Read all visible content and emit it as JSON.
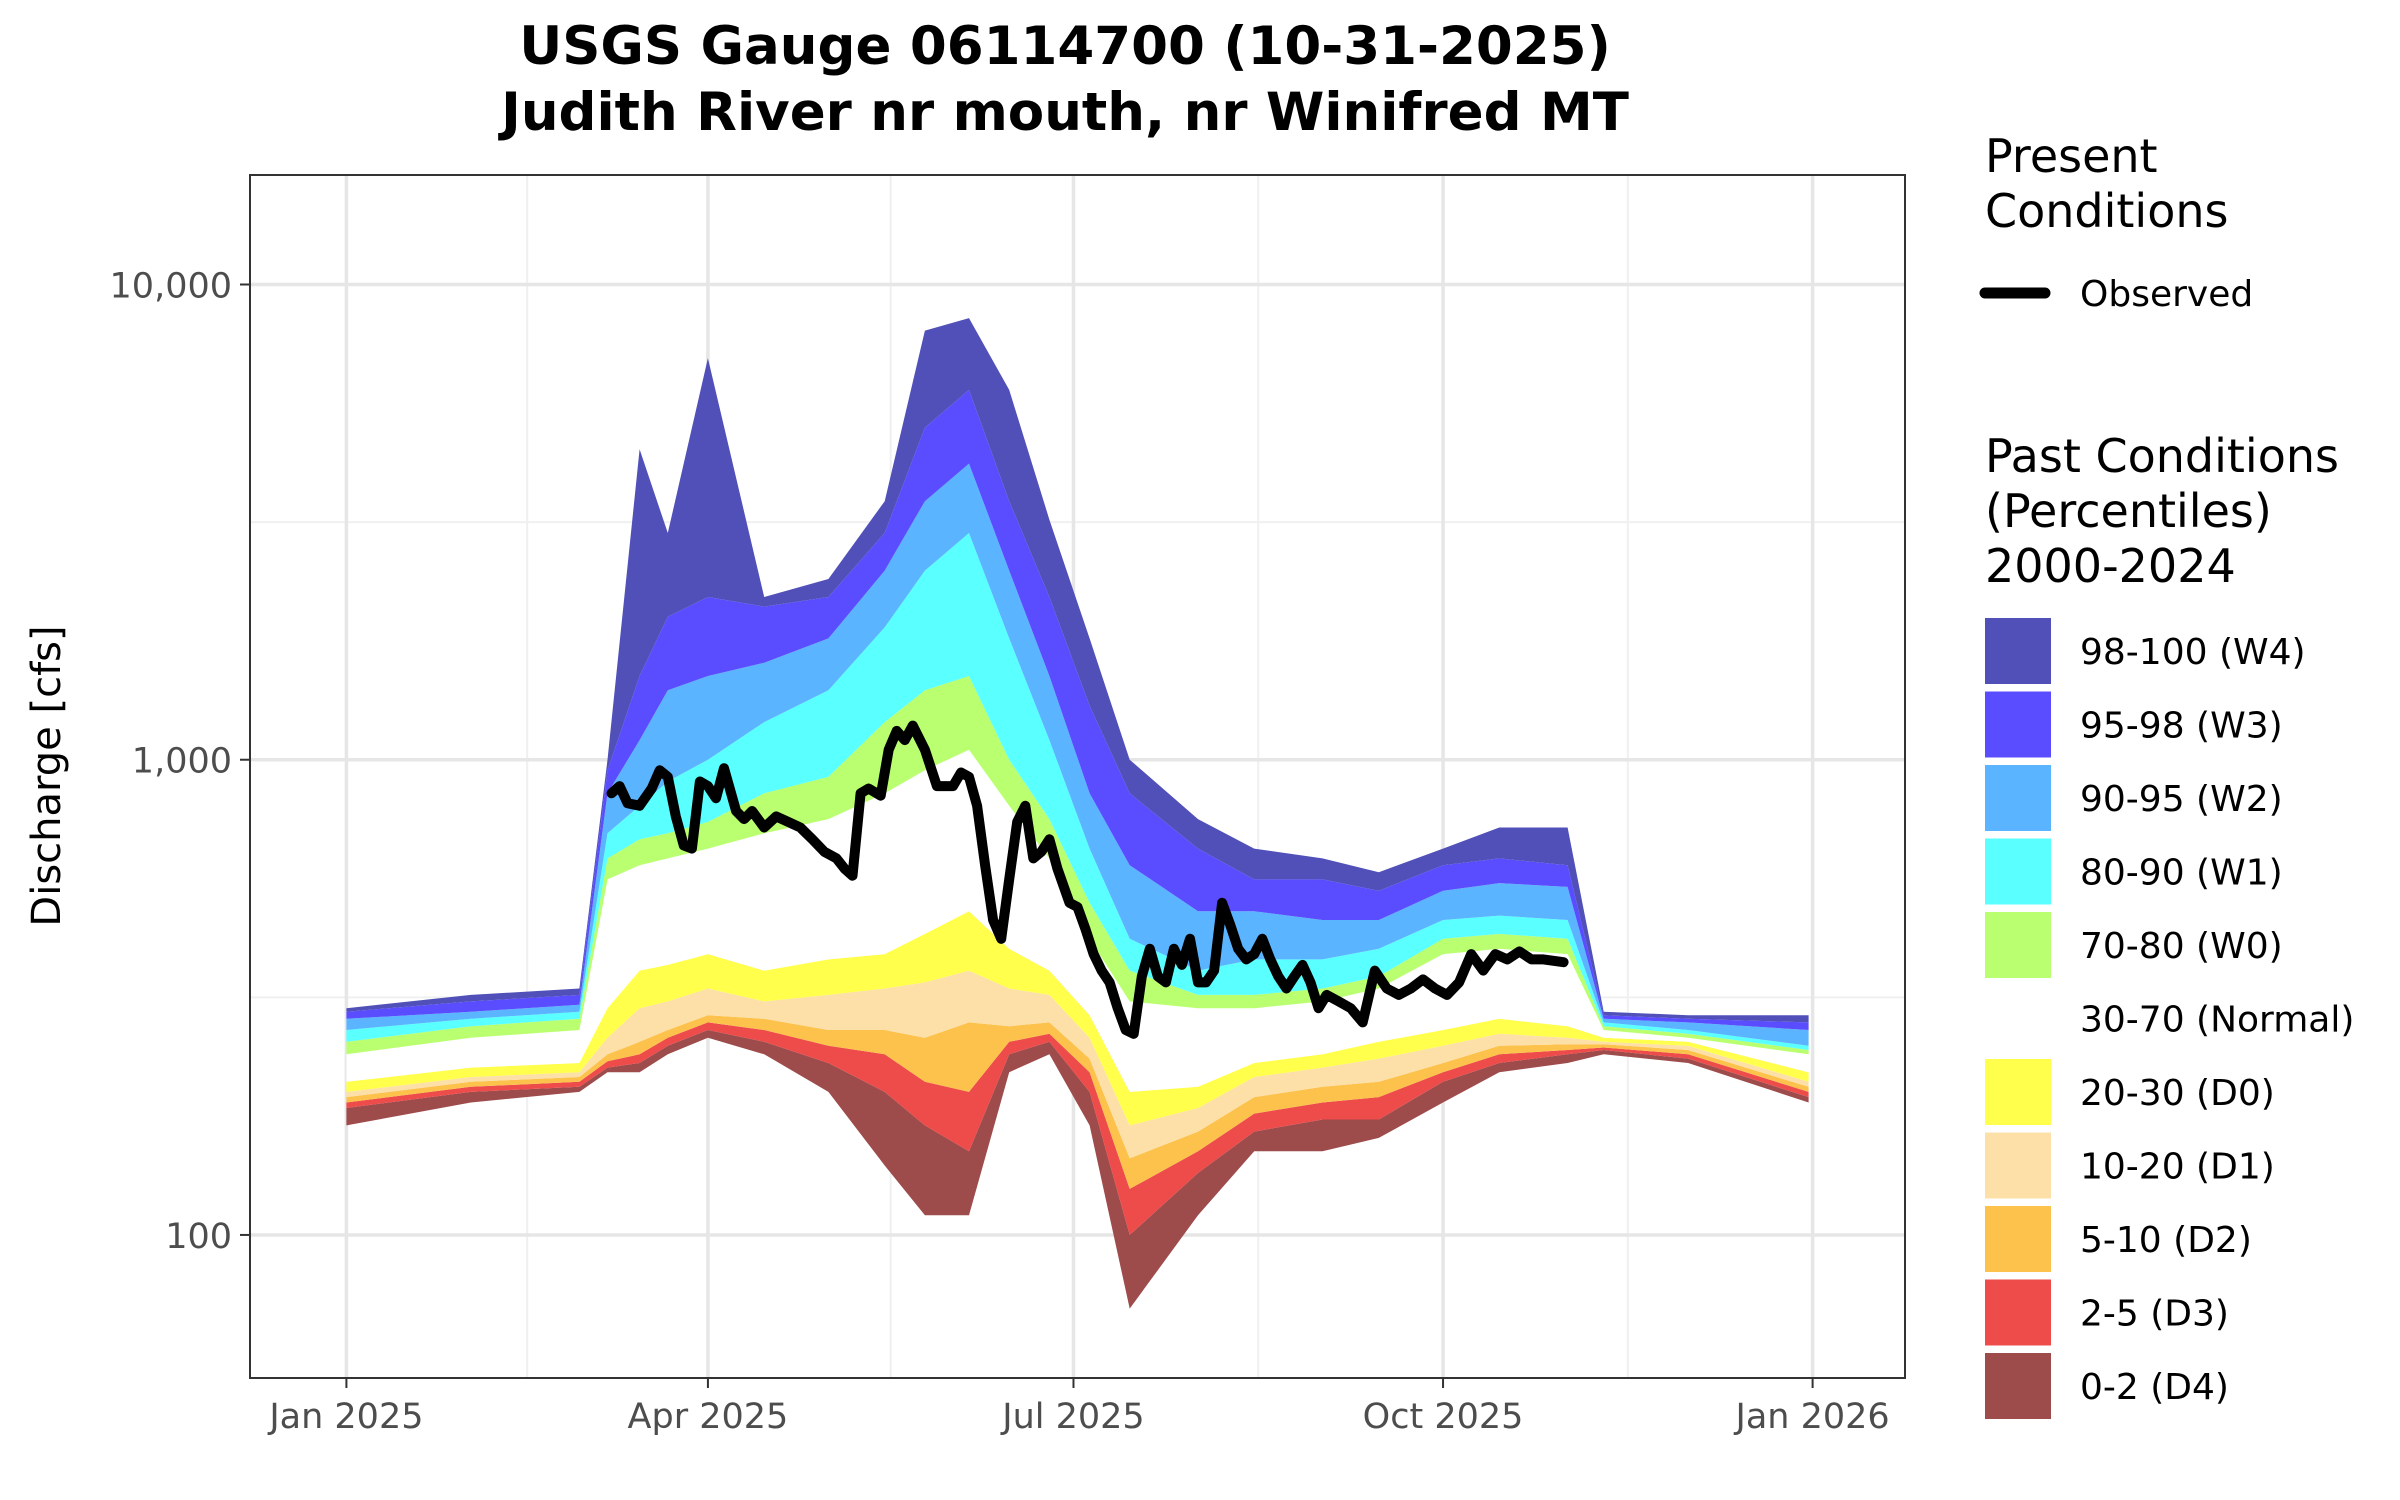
{
  "chart_data": {
    "type": "area",
    "title": "USGS Gauge 06114700 (10-31-2025)",
    "subtitle": "Judith River nr mouth, nr Winifred MT",
    "xlabel": "",
    "ylabel": "Discharge [cfs]",
    "y_scale": "log",
    "ylim": [
      50,
      17000
    ],
    "y_ticks": [
      100,
      1000,
      10000
    ],
    "y_tick_labels": [
      "100",
      "1,000",
      "10,000"
    ],
    "x_range": [
      "2024-12-08",
      "2026-01-24"
    ],
    "x_ticks": [
      "2025-01-01",
      "2025-04-01",
      "2025-07-01",
      "2025-10-01",
      "2026-01-01"
    ],
    "x_tick_labels": [
      "Jan 2025",
      "Apr 2025",
      "Jul 2025",
      "Oct 2025",
      "Jan 2026"
    ],
    "grid": true,
    "legend_position": "right",
    "legend_present_title": "Present Conditions",
    "legend_past_title": "Past Conditions (Percentiles) 2000-2024",
    "percentile_bands": [
      {
        "name": "98-100 (W4)",
        "color": "#5050b8"
      },
      {
        "name": "95-98 (W3)",
        "color": "#5a4cff"
      },
      {
        "name": "90-95 (W2)",
        "color": "#5ab4ff"
      },
      {
        "name": "80-90 (W1)",
        "color": "#5affff"
      },
      {
        "name": "70-80 (W0)",
        "color": "#b9ff70"
      },
      {
        "name": "30-70 (Normal)",
        "color": "#ffffff"
      },
      {
        "name": "20-30 (D0)",
        "color": "#ffff4c"
      },
      {
        "name": "10-20 (D1)",
        "color": "#fde0a8"
      },
      {
        "name": "5-10 (D2)",
        "color": "#fdc24c"
      },
      {
        "name": "2-5 (D3)",
        "color": "#ee4b4b"
      },
      {
        "name": "0-2 (D4)",
        "color": "#9e4b4b"
      }
    ],
    "percentile_x": [
      "2025-01-01",
      "2025-02-01",
      "2025-02-28",
      "2025-03-07",
      "2025-03-15",
      "2025-03-22",
      "2025-04-01",
      "2025-04-15",
      "2025-05-01",
      "2025-05-15",
      "2025-05-25",
      "2025-06-05",
      "2025-06-15",
      "2025-06-25",
      "2025-07-05",
      "2025-07-15",
      "2025-08-01",
      "2025-08-15",
      "2025-09-01",
      "2025-09-15",
      "2025-10-01",
      "2025-10-15",
      "2025-11-01",
      "2025-11-10",
      "2025-12-01",
      "2025-12-31"
    ],
    "percentile_boundaries": [
      {
        "name": "p0",
        "values": [
          170,
          190,
          200,
          220,
          220,
          240,
          260,
          240,
          200,
          140,
          110,
          110,
          220,
          240,
          170,
          70,
          110,
          150,
          150,
          160,
          190,
          220,
          230,
          240,
          230,
          190
        ]
      },
      {
        "name": "p2",
        "values": [
          185,
          200,
          205,
          225,
          230,
          250,
          270,
          255,
          230,
          200,
          170,
          150,
          240,
          255,
          200,
          100,
          135,
          165,
          175,
          175,
          210,
          230,
          240,
          245,
          235,
          195
        ]
      },
      {
        "name": "p5",
        "values": [
          190,
          205,
          210,
          232,
          240,
          260,
          280,
          270,
          250,
          240,
          210,
          200,
          255,
          265,
          220,
          125,
          150,
          180,
          190,
          195,
          220,
          240,
          245,
          248,
          240,
          200
        ]
      },
      {
        "name": "p10",
        "values": [
          195,
          210,
          215,
          240,
          255,
          270,
          290,
          285,
          270,
          270,
          260,
          280,
          275,
          280,
          235,
          145,
          165,
          195,
          205,
          210,
          230,
          250,
          252,
          252,
          245,
          205
        ]
      },
      {
        "name": "p20",
        "values": [
          200,
          215,
          220,
          260,
          300,
          310,
          330,
          310,
          320,
          330,
          340,
          360,
          330,
          320,
          260,
          170,
          185,
          215,
          225,
          235,
          250,
          265,
          260,
          255,
          250,
          210
        ]
      },
      {
        "name": "p30",
        "values": [
          210,
          225,
          230,
          300,
          360,
          370,
          390,
          360,
          380,
          390,
          430,
          480,
          400,
          360,
          290,
          200,
          205,
          230,
          240,
          255,
          270,
          285,
          275,
          260,
          255,
          220
        ]
      },
      {
        "name": "p70",
        "values": [
          240,
          260,
          270,
          560,
          600,
          620,
          650,
          700,
          750,
          850,
          950,
          1050,
          800,
          620,
          420,
          310,
          300,
          300,
          310,
          330,
          390,
          400,
          390,
          270,
          260,
          240
        ]
      },
      {
        "name": "p80",
        "values": [
          255,
          275,
          285,
          620,
          680,
          700,
          740,
          850,
          920,
          1200,
          1400,
          1500,
          1000,
          750,
          500,
          360,
          320,
          320,
          330,
          350,
          420,
          430,
          420,
          275,
          265,
          245
        ]
      },
      {
        "name": "p90",
        "values": [
          270,
          285,
          295,
          700,
          800,
          900,
          1000,
          1200,
          1400,
          1900,
          2500,
          3000,
          1800,
          1100,
          650,
          420,
          360,
          380,
          380,
          400,
          460,
          470,
          460,
          280,
          270,
          250
        ]
      },
      {
        "name": "p95",
        "values": [
          285,
          295,
          305,
          850,
          1100,
          1400,
          1500,
          1600,
          1800,
          2500,
          3500,
          4200,
          2500,
          1500,
          850,
          600,
          480,
          480,
          460,
          460,
          530,
          550,
          540,
          285,
          280,
          270
        ]
      },
      {
        "name": "p98",
        "values": [
          295,
          310,
          320,
          950,
          1500,
          2000,
          2200,
          2100,
          2200,
          3000,
          5000,
          6000,
          3500,
          2200,
          1300,
          850,
          650,
          560,
          560,
          530,
          600,
          620,
          600,
          290,
          285,
          280
        ]
      },
      {
        "name": "p100",
        "values": [
          300,
          320,
          330,
          1000,
          4500,
          3000,
          7000,
          2200,
          2400,
          3500,
          8000,
          8500,
          6000,
          3200,
          1800,
          1000,
          750,
          650,
          620,
          580,
          650,
          720,
          720,
          295,
          290,
          290
        ]
      }
    ],
    "series": [
      {
        "name": "Observed",
        "color": "#000000",
        "x": [
          "2025-03-08",
          "2025-03-10",
          "2025-03-12",
          "2025-03-15",
          "2025-03-18",
          "2025-03-20",
          "2025-03-22",
          "2025-03-24",
          "2025-03-26",
          "2025-03-28",
          "2025-03-30",
          "2025-04-01",
          "2025-04-03",
          "2025-04-05",
          "2025-04-08",
          "2025-04-10",
          "2025-04-12",
          "2025-04-15",
          "2025-04-18",
          "2025-04-21",
          "2025-04-24",
          "2025-04-27",
          "2025-04-30",
          "2025-05-03",
          "2025-05-05",
          "2025-05-07",
          "2025-05-09",
          "2025-05-11",
          "2025-05-14",
          "2025-05-16",
          "2025-05-18",
          "2025-05-20",
          "2025-05-22",
          "2025-05-25",
          "2025-05-28",
          "2025-06-01",
          "2025-06-03",
          "2025-06-05",
          "2025-06-07",
          "2025-06-09",
          "2025-06-11",
          "2025-06-13",
          "2025-06-15",
          "2025-06-17",
          "2025-06-19",
          "2025-06-21",
          "2025-06-23",
          "2025-06-25",
          "2025-06-27",
          "2025-06-30",
          "2025-07-02",
          "2025-07-04",
          "2025-07-06",
          "2025-07-08",
          "2025-07-10",
          "2025-07-12",
          "2025-07-14",
          "2025-07-16",
          "2025-07-18",
          "2025-07-20",
          "2025-07-22",
          "2025-07-24",
          "2025-07-26",
          "2025-07-28",
          "2025-07-30",
          "2025-08-01",
          "2025-08-03",
          "2025-08-05",
          "2025-08-07",
          "2025-08-09",
          "2025-08-11",
          "2025-08-13",
          "2025-08-15",
          "2025-08-17",
          "2025-08-19",
          "2025-08-21",
          "2025-08-23",
          "2025-08-25",
          "2025-08-27",
          "2025-08-29",
          "2025-08-31",
          "2025-09-02",
          "2025-09-05",
          "2025-09-08",
          "2025-09-11",
          "2025-09-14",
          "2025-09-17",
          "2025-09-20",
          "2025-09-23",
          "2025-09-26",
          "2025-09-29",
          "2025-10-02",
          "2025-10-05",
          "2025-10-08",
          "2025-10-11",
          "2025-10-14",
          "2025-10-17",
          "2025-10-20",
          "2025-10-23",
          "2025-10-26",
          "2025-10-31"
        ],
        "values": [
          850,
          880,
          810,
          800,
          870,
          950,
          920,
          760,
          660,
          650,
          900,
          880,
          830,
          960,
          780,
          750,
          780,
          720,
          760,
          740,
          720,
          680,
          640,
          620,
          590,
          570,
          850,
          870,
          840,
          1050,
          1150,
          1100,
          1180,
          1050,
          880,
          880,
          940,
          920,
          800,
          600,
          460,
          420,
          560,
          740,
          800,
          620,
          640,
          680,
          590,
          500,
          490,
          440,
          390,
          360,
          340,
          300,
          270,
          265,
          350,
          400,
          350,
          340,
          400,
          370,
          420,
          340,
          340,
          360,
          500,
          450,
          400,
          380,
          390,
          420,
          380,
          350,
          330,
          350,
          370,
          340,
          300,
          320,
          310,
          300,
          280,
          360,
          330,
          320,
          330,
          345,
          330,
          320,
          340,
          390,
          360,
          390,
          380,
          395,
          380,
          380,
          375
        ]
      }
    ]
  }
}
